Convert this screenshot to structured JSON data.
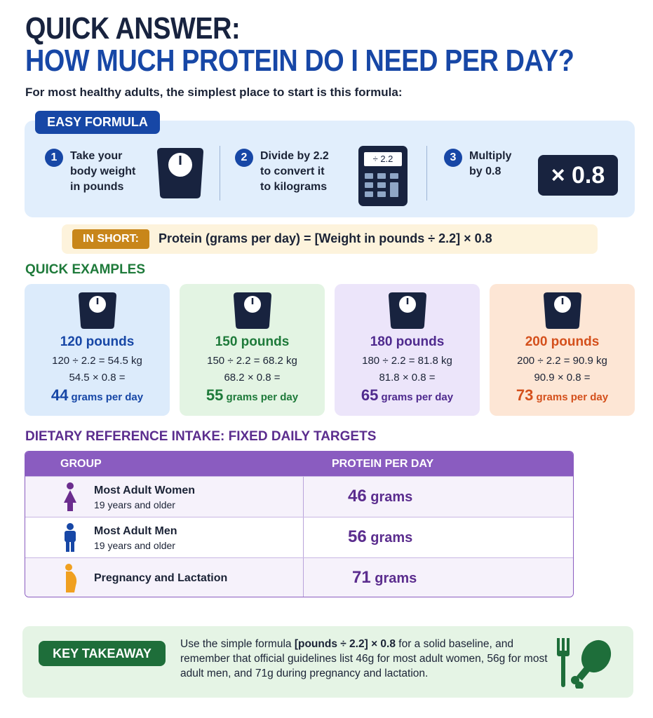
{
  "title_line1": "QUICK ANSWER:",
  "title_line2": "HOW MUCH PROTEIN DO I NEED PER DAY?",
  "subtitle": "For most healthy adults, the simplest place to start is this formula:",
  "formula": {
    "badge": "EASY FORMULA",
    "steps": [
      {
        "num": "1",
        "lines": [
          "Take your",
          "body weight",
          "in pounds"
        ],
        "icon": "scale-icon"
      },
      {
        "num": "2",
        "lines": [
          "Divide by 2.2",
          "to convert it",
          "to kilograms"
        ],
        "icon": "calculator-icon",
        "display": "÷ 2.2"
      },
      {
        "num": "3",
        "lines": [
          "Multiply",
          "by 0.8"
        ],
        "value": "× 0.8"
      }
    ]
  },
  "in_short": {
    "badge": "IN SHORT:",
    "text": "Protein (grams per day) = [Weight in pounds ÷ 2.2] × 0.8"
  },
  "examples": {
    "heading": "QUICK EXAMPLES",
    "cards": [
      {
        "pounds": "120 pounds",
        "line1": "120 ÷ 2.2 = 54.5 kg",
        "line2": "54.5 × 0.8 =",
        "grams": "44",
        "unit": "grams per day",
        "color": "#1747a6",
        "bg": "#dcebfb"
      },
      {
        "pounds": "150 pounds",
        "line1": "150 ÷ 2.2 = 68.2 kg",
        "line2": "68.2 × 0.8 =",
        "grams": "55",
        "unit": "grams per day",
        "color": "#1e7a3a",
        "bg": "#e3f4e3"
      },
      {
        "pounds": "180 pounds",
        "line1": "180 ÷ 2.2 = 81.8 kg",
        "line2": "81.8 × 0.8 =",
        "grams": "65",
        "unit": "grams per day",
        "color": "#4f2a8e",
        "bg": "#ece5fa"
      },
      {
        "pounds": "200 pounds",
        "line1": "200 ÷ 2.2 = 90.9 kg",
        "line2": "90.9 × 0.8 =",
        "grams": "73",
        "unit": "grams per day",
        "color": "#d4501c",
        "bg": "#fde6d5"
      }
    ]
  },
  "dri": {
    "heading": "DIETARY REFERENCE INTAKE: FIXED DAILY TARGETS",
    "columns": [
      "GROUP",
      "PROTEIN PER DAY"
    ],
    "rows": [
      {
        "group": "Most Adult Women",
        "sub": "19 years and older",
        "value": "46",
        "unit": "grams",
        "icon": "woman-icon",
        "icon_color": "#6b2d8e"
      },
      {
        "group": "Most Adult Men",
        "sub": "19 years and older",
        "value": "56",
        "unit": "grams",
        "icon": "man-icon",
        "icon_color": "#1747a6"
      },
      {
        "group": "Pregnancy and Lactation",
        "sub": "",
        "value": "71",
        "unit": "grams",
        "icon": "pregnant-woman-icon",
        "icon_color": "#f0a020"
      }
    ]
  },
  "takeaway": {
    "badge": "KEY TAKEAWAY",
    "pre": "Use the simple formula ",
    "bold": "[pounds ÷ 2.2] × 0.8",
    "post": " for a solid baseline, and remember that official guidelines list 46g for most adult women, 56g for most adult men, and 71g during pregnancy and lactation."
  }
}
